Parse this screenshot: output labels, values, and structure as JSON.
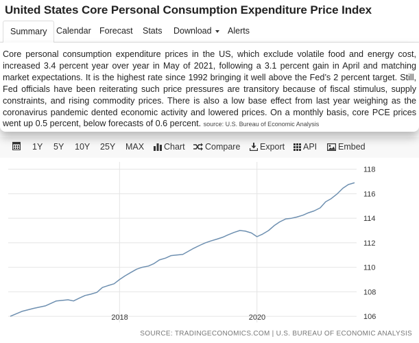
{
  "page": {
    "title": "United States Core Personal Consumption Expenditure Price Index"
  },
  "tabs": [
    {
      "label": "Summary",
      "active": true
    },
    {
      "label": "Calendar"
    },
    {
      "label": "Forecast"
    },
    {
      "label": "Stats"
    },
    {
      "label": "Download",
      "dropdown": true
    },
    {
      "label": "Alerts"
    }
  ],
  "description": {
    "text": "Core personal consumption expenditure prices in the US, which exclude volatile food and energy cost, increased 3.4 percent year over year in May of 2021, following a 3.1 percent gain in April and matching market expectations. It is the highest rate since 1992 bringing it well above the Fed’s 2 percent target. Still, Fed officials have been reiterating such price pressures are transitory because of fiscal stimulus, supply constraints, and rising commodity prices. There is also a low base effect from last year weighing as the coronavirus pandemic dented economic activity and lowered prices. On a monthly basis, core PCE prices went up 0.5 percent, below forecasts of 0.6 percent.",
    "source": "source: U.S. Bureau of Economic Analysis"
  },
  "toolbar": {
    "ranges": [
      "1Y",
      "5Y",
      "10Y",
      "25Y",
      "MAX"
    ],
    "chart_label": "Chart",
    "compare_label": "Compare",
    "export_label": "Export",
    "api_label": "API",
    "embed_label": "Embed",
    "icons": [
      "calendar-icon",
      "bar-chart-icon",
      "shuffle-icon",
      "download-icon",
      "grid-icon",
      "image-icon"
    ]
  },
  "chart_footer": "SOURCE: TRADINGECONOMICS.COM | U.S. BUREAU OF ECONOMIC ANALYSIS",
  "colors": {
    "line": "#6d8fb0",
    "grid": "#e4e4e4"
  },
  "chart_data": {
    "type": "line",
    "title": "United States Core Personal Consumption Expenditure Price Index",
    "xlabel": "",
    "ylabel": "",
    "ylim": [
      105.5,
      118.6
    ],
    "yticks": [
      106,
      108,
      110,
      112,
      114,
      116,
      118
    ],
    "xticks": [
      {
        "label": "2018",
        "x": 2018.0
      },
      {
        "label": "2020",
        "x": 2020.0
      }
    ],
    "xlim": [
      2016.38,
      2021.45
    ],
    "grid": true,
    "series": [
      {
        "name": "Core PCE Price Index",
        "x": [
          2016.41,
          2016.58,
          2016.75,
          2016.92,
          2017.08,
          2017.25,
          2017.33,
          2017.42,
          2017.5,
          2017.58,
          2017.67,
          2017.75,
          2017.83,
          2017.92,
          2018.0,
          2018.08,
          2018.17,
          2018.25,
          2018.33,
          2018.42,
          2018.5,
          2018.58,
          2018.67,
          2018.75,
          2018.83,
          2018.92,
          2019.0,
          2019.08,
          2019.17,
          2019.25,
          2019.33,
          2019.42,
          2019.5,
          2019.58,
          2019.67,
          2019.75,
          2019.83,
          2019.92,
          2020.0,
          2020.08,
          2020.17,
          2020.25,
          2020.33,
          2020.42,
          2020.5,
          2020.58,
          2020.67,
          2020.75,
          2020.83,
          2020.92,
          2021.0,
          2021.08,
          2021.17,
          2021.25,
          2021.33,
          2021.42
        ],
        "values": [
          106.0,
          106.4,
          106.65,
          106.85,
          107.25,
          107.35,
          107.25,
          107.5,
          107.7,
          107.8,
          107.95,
          108.35,
          108.5,
          108.65,
          109.0,
          109.3,
          109.6,
          109.85,
          110.0,
          110.1,
          110.3,
          110.6,
          110.75,
          110.95,
          111.0,
          111.05,
          111.3,
          111.55,
          111.8,
          112.0,
          112.15,
          112.3,
          112.45,
          112.65,
          112.85,
          113.0,
          112.95,
          112.8,
          112.5,
          112.7,
          113.0,
          113.4,
          113.7,
          113.95,
          114.0,
          114.1,
          114.25,
          114.45,
          114.6,
          114.85,
          115.35,
          115.6,
          116.0,
          116.45,
          116.75,
          116.9
        ]
      }
    ]
  }
}
